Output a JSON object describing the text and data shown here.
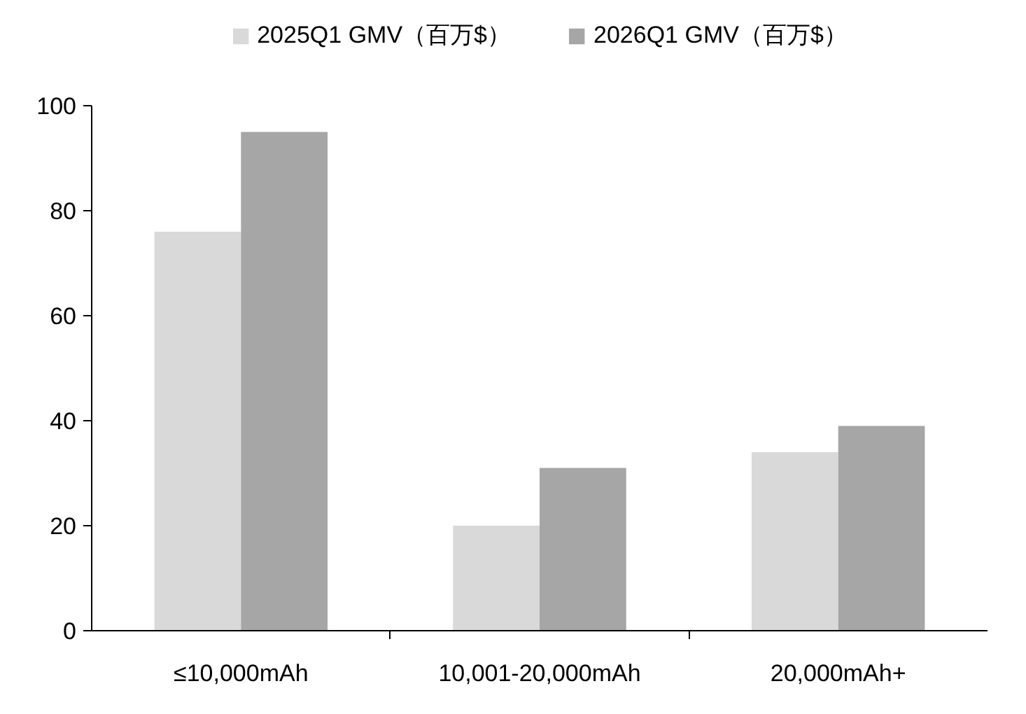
{
  "chart_data": {
    "type": "bar",
    "categories": [
      "≤10,000mAh",
      "10,001-20,000mAh",
      "20,000mAh+"
    ],
    "series": [
      {
        "name": "2025Q1 GMV（百万$）",
        "color": "#d9d9d9",
        "values": [
          76,
          20,
          34
        ]
      },
      {
        "name": "2026Q1 GMV（百万$）",
        "color": "#a6a6a6",
        "values": [
          95,
          31,
          39
        ]
      }
    ],
    "ylim": [
      0,
      100
    ],
    "yticks": [
      0,
      20,
      40,
      60,
      80,
      100
    ],
    "grid": false,
    "legend": "top"
  }
}
